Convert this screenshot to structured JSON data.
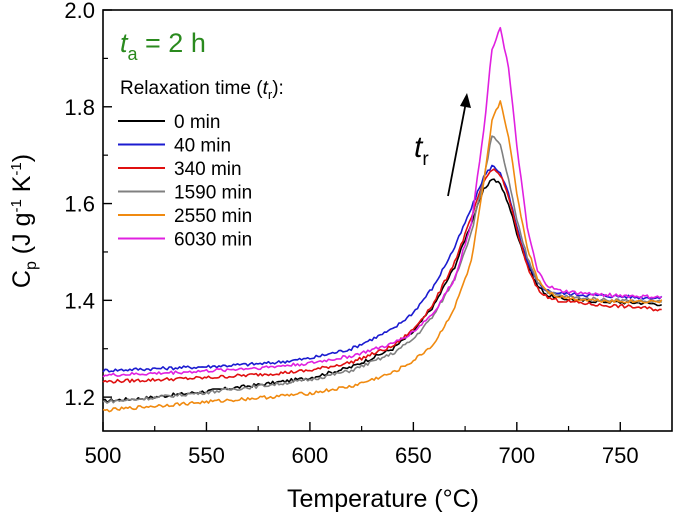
{
  "chart_data": {
    "type": "line",
    "xlabel": "Temperature (°C)",
    "ylabel_parts": {
      "base": "C",
      "sub": "p",
      "unit_open": " (J g",
      "sup1": "-1",
      "mid": " K",
      "sup2": "-1",
      "close": ")"
    },
    "xlim": [
      500,
      775
    ],
    "ylim": [
      1.13,
      2.0
    ],
    "xticks": [
      500,
      550,
      600,
      650,
      700,
      750
    ],
    "yticks": [
      1.2,
      1.4,
      1.6,
      1.8,
      2.0
    ],
    "ytick_labels": [
      "1.2",
      "1.4",
      "1.6",
      "1.8",
      "2.0"
    ],
    "annotation": {
      "t": "t",
      "sub": "a",
      "rest": " = 2 h",
      "color": "#2a8a1e"
    },
    "legend_title": {
      "prefix": "Relaxation time (",
      "t": "t",
      "sub": "r",
      "suffix": "):"
    },
    "arrow_label": {
      "t": "t",
      "sub": "r"
    },
    "series": [
      {
        "name": "0 min",
        "color": "#000000",
        "x": [
          500,
          520,
          550,
          580,
          600,
          620,
          640,
          650,
          660,
          670,
          678,
          684,
          688,
          692,
          696,
          700,
          705,
          710,
          715,
          720,
          730,
          740,
          750,
          760,
          770
        ],
        "y": [
          1.192,
          1.198,
          1.212,
          1.228,
          1.24,
          1.262,
          1.3,
          1.335,
          1.39,
          1.47,
          1.56,
          1.628,
          1.652,
          1.64,
          1.6,
          1.54,
          1.475,
          1.43,
          1.41,
          1.405,
          1.4,
          1.398,
          1.396,
          1.395,
          1.392
        ]
      },
      {
        "name": "40 min",
        "color": "#1b1bd0",
        "x": [
          500,
          520,
          550,
          580,
          600,
          620,
          640,
          650,
          660,
          670,
          678,
          684,
          688,
          692,
          696,
          700,
          705,
          710,
          715,
          720,
          730,
          740,
          750,
          760,
          770
        ],
        "y": [
          1.255,
          1.258,
          1.263,
          1.27,
          1.28,
          1.3,
          1.34,
          1.375,
          1.43,
          1.51,
          1.59,
          1.655,
          1.678,
          1.665,
          1.62,
          1.55,
          1.48,
          1.435,
          1.42,
          1.415,
          1.412,
          1.41,
          1.408,
          1.406,
          1.405
        ]
      },
      {
        "name": "340 min",
        "color": "#e01010",
        "x": [
          500,
          520,
          550,
          580,
          600,
          620,
          640,
          650,
          660,
          670,
          678,
          684,
          688,
          692,
          696,
          700,
          705,
          710,
          715,
          720,
          730,
          740,
          750,
          760,
          770
        ],
        "y": [
          1.232,
          1.235,
          1.24,
          1.248,
          1.255,
          1.272,
          1.305,
          1.34,
          1.395,
          1.48,
          1.57,
          1.645,
          1.672,
          1.66,
          1.615,
          1.545,
          1.47,
          1.425,
          1.405,
          1.4,
          1.395,
          1.39,
          1.388,
          1.385,
          1.38
        ]
      },
      {
        "name": "1590 min",
        "color": "#808080",
        "x": [
          500,
          520,
          550,
          580,
          600,
          620,
          640,
          650,
          660,
          670,
          678,
          684,
          688,
          692,
          696,
          700,
          705,
          710,
          715,
          720,
          730,
          740,
          750,
          760,
          770
        ],
        "y": [
          1.19,
          1.197,
          1.21,
          1.225,
          1.236,
          1.255,
          1.29,
          1.32,
          1.37,
          1.445,
          1.54,
          1.65,
          1.74,
          1.72,
          1.65,
          1.565,
          1.49,
          1.44,
          1.418,
          1.41,
          1.405,
          1.402,
          1.4,
          1.398,
          1.397
        ]
      },
      {
        "name": "2550 min",
        "color": "#f08a10",
        "x": [
          500,
          520,
          550,
          580,
          600,
          620,
          640,
          650,
          660,
          670,
          678,
          684,
          688,
          692,
          696,
          700,
          705,
          710,
          715,
          720,
          730,
          740,
          750,
          760,
          770
        ],
        "y": [
          1.172,
          1.18,
          1.19,
          1.2,
          1.208,
          1.222,
          1.25,
          1.275,
          1.31,
          1.385,
          1.48,
          1.64,
          1.77,
          1.812,
          1.74,
          1.62,
          1.51,
          1.445,
          1.418,
          1.408,
          1.402,
          1.4,
          1.398,
          1.398,
          1.398
        ]
      },
      {
        "name": "6030 min",
        "color": "#e020e0",
        "x": [
          500,
          520,
          550,
          580,
          600,
          620,
          640,
          650,
          660,
          670,
          678,
          684,
          688,
          692,
          696,
          700,
          705,
          710,
          715,
          720,
          730,
          740,
          750,
          760,
          770
        ],
        "y": [
          1.245,
          1.248,
          1.254,
          1.262,
          1.27,
          1.285,
          1.31,
          1.335,
          1.375,
          1.445,
          1.56,
          1.75,
          1.92,
          1.965,
          1.88,
          1.72,
          1.55,
          1.46,
          1.43,
          1.42,
          1.415,
          1.412,
          1.41,
          1.408,
          1.406
        ]
      }
    ]
  }
}
